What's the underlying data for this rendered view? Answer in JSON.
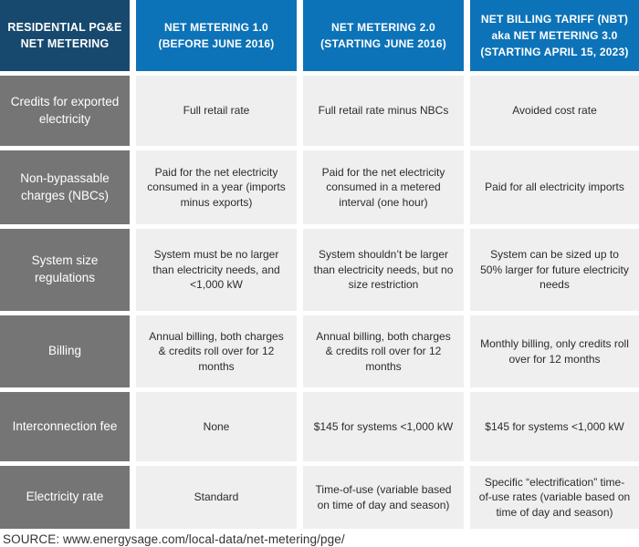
{
  "chart_data": {
    "type": "table",
    "title": "RESIDENTIAL PG&E NET METERING",
    "columns": [
      "RESIDENTIAL PG&E NET METERING",
      "NET METERING 1.0 (BEFORE JUNE 2016)",
      "NET METERING 2.0 (STARTING JUNE 2016)",
      "NET BILLING TARIFF (NBT) aka NET METERING 3.0 (STARTING APRIL 15, 2023)"
    ],
    "rows": [
      {
        "label": "Credits for exported electricity",
        "cells": [
          "Full retail rate",
          "Full retail rate minus NBCs",
          "Avoided cost rate"
        ]
      },
      {
        "label": "Non-bypassable charges (NBCs)",
        "cells": [
          "Paid for the net electricity consumed in a year (imports minus exports)",
          "Paid for the net electricity consumed in a metered interval (one hour)",
          "Paid for all electricity imports"
        ]
      },
      {
        "label": "System size regulations",
        "cells": [
          "System must be no larger than electricity needs, and <1,000 kW",
          "System shouldn’t be larger than electricity needs, but no size restriction",
          "System can be sized up to 50% larger for future electricity needs"
        ]
      },
      {
        "label": "Billing",
        "cells": [
          "Annual billing, both charges & credits roll over for 12 months",
          "Annual billing, both charges & credits roll over for 12 months",
          "Monthly billing, only credits roll over for 12 months"
        ]
      },
      {
        "label": "Interconnection fee",
        "cells": [
          "None",
          "$145 for systems <1,000 kW",
          "$145 for systems <1,000 kW"
        ]
      },
      {
        "label": "Electricity rate",
        "cells": [
          "Standard",
          "Time-of-use (variable based on time of day and season)",
          "Specific “electrification” time-of-use rates (variable based on time of day and season)"
        ]
      }
    ],
    "legend_position": "none",
    "grid": "off"
  },
  "source": "SOURCE: www.energysage.com/local-data/net-metering/pge/",
  "colors": {
    "corner_navy": "#17496f",
    "header_blue": "#0d73b8",
    "label_gray": "#757575",
    "cell_bg": "#efefef",
    "text_dark": "#2b2b2b",
    "gap_white": "#ffffff"
  }
}
